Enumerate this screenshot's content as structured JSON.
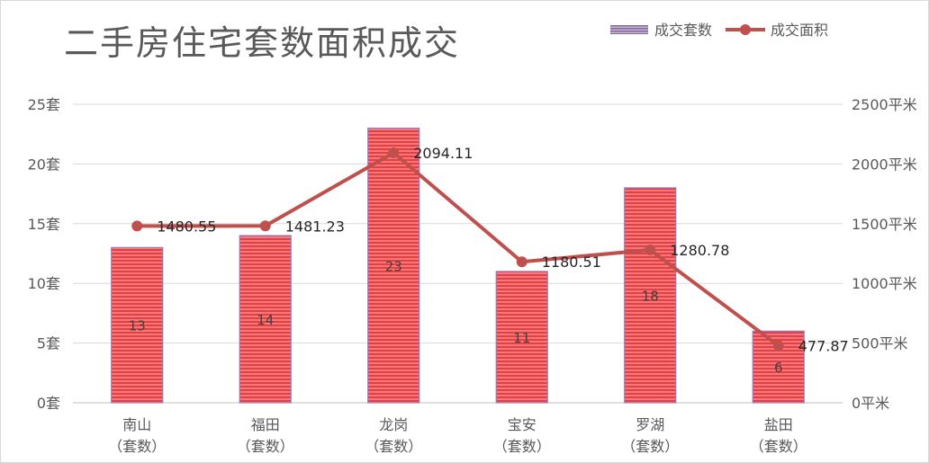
{
  "chart_data": {
    "type": "bar",
    "title": "二手房住宅套数面积成交",
    "categories": [
      "南山\n（套数）",
      "福田\n（套数）",
      "龙岗\n（套数）",
      "宝安\n（套数）",
      "罗湖\n（套数）",
      "盐田\n（套数）"
    ],
    "series": [
      {
        "name": "成交套数",
        "type": "bar",
        "axis": "left",
        "values": [
          13,
          14,
          23,
          11,
          18,
          6
        ],
        "color": "#e8454a"
      },
      {
        "name": "成交面积",
        "type": "line",
        "axis": "right",
        "values": [
          1480.55,
          1481.23,
          2094.11,
          1180.51,
          1280.78,
          477.87
        ],
        "color": "#c0504d"
      }
    ],
    "left_axis": {
      "min": 0,
      "max": 25,
      "step": 5,
      "unit": "套",
      "ticks": [
        "0套",
        "5套",
        "10套",
        "15套",
        "20套",
        "25套"
      ]
    },
    "right_axis": {
      "min": 0,
      "max": 2500,
      "step": 500,
      "unit": "平米",
      "ticks": [
        "0平米",
        "500平米",
        "1000平米",
        "1500平米",
        "2000平米",
        "2500平米"
      ]
    },
    "line_labels": [
      "1480.55",
      "1481.23",
      "2094.11",
      "1180.51",
      "1280.78",
      "477.87"
    ],
    "bar_labels": [
      "13",
      "14",
      "23",
      "11",
      "18",
      "6"
    ],
    "grid": true,
    "legend": "top-right"
  }
}
